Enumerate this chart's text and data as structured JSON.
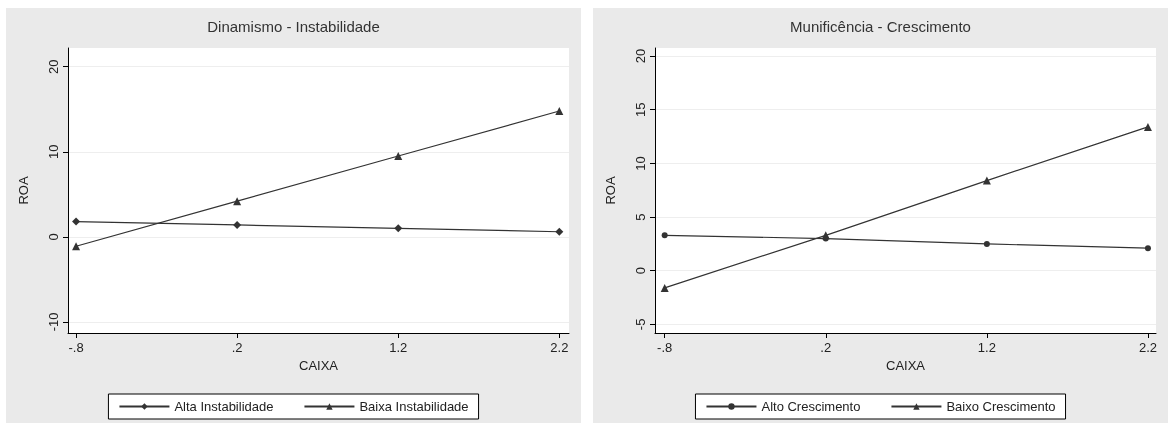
{
  "chart_data": [
    {
      "type": "line",
      "title": "Dinamismo - Instabilidade",
      "xlabel": "CAIXA",
      "ylabel": "ROA",
      "x": [
        -0.8,
        0.2,
        1.2,
        2.2
      ],
      "xlim": [
        -0.85,
        2.26
      ],
      "xticks": [
        {
          "value": -0.8,
          "label": "-.8"
        },
        {
          "value": 0.2,
          "label": ".2"
        },
        {
          "value": 1.2,
          "label": "1.2"
        },
        {
          "value": 2.2,
          "label": "2.2"
        }
      ],
      "ylim": [
        -11.3,
        22.2
      ],
      "yticks": [
        -10,
        0,
        10,
        20
      ],
      "grid": "y",
      "legend": "bottom",
      "line_style": "solid",
      "series": [
        {
          "name": "Alta Instabilidade",
          "color": "#333333",
          "marker": "diamond",
          "values": [
            1.8,
            1.4,
            1.0,
            0.6
          ]
        },
        {
          "name": "Baixa Instabilidade",
          "color": "#333333",
          "marker": "triangle",
          "values": [
            -1.1,
            4.2,
            9.5,
            14.8
          ]
        }
      ]
    },
    {
      "type": "line",
      "title": "Munificência - Crescimento",
      "xlabel": "CAIXA",
      "ylabel": "ROA",
      "x": [
        -0.8,
        0.2,
        1.2,
        2.2
      ],
      "xlim": [
        -0.86,
        2.25
      ],
      "xticks": [
        {
          "value": -0.8,
          "label": "-.8"
        },
        {
          "value": 0.2,
          "label": ".2"
        },
        {
          "value": 1.2,
          "label": "1.2"
        },
        {
          "value": 2.2,
          "label": "2.2"
        }
      ],
      "ylim": [
        -5.8,
        20.75
      ],
      "yticks": [
        -5,
        0,
        5,
        10,
        15,
        20
      ],
      "grid": "y",
      "legend": "bottom",
      "line_style": "solid",
      "series": [
        {
          "name": "Alto Crescimento",
          "color": "#333333",
          "marker": "circle",
          "values": [
            3.3,
            3.0,
            2.5,
            2.1
          ]
        },
        {
          "name": "Baixo Crescimento",
          "color": "#333333",
          "marker": "triangle",
          "values": [
            -1.6,
            3.3,
            8.4,
            13.4
          ]
        }
      ]
    }
  ]
}
